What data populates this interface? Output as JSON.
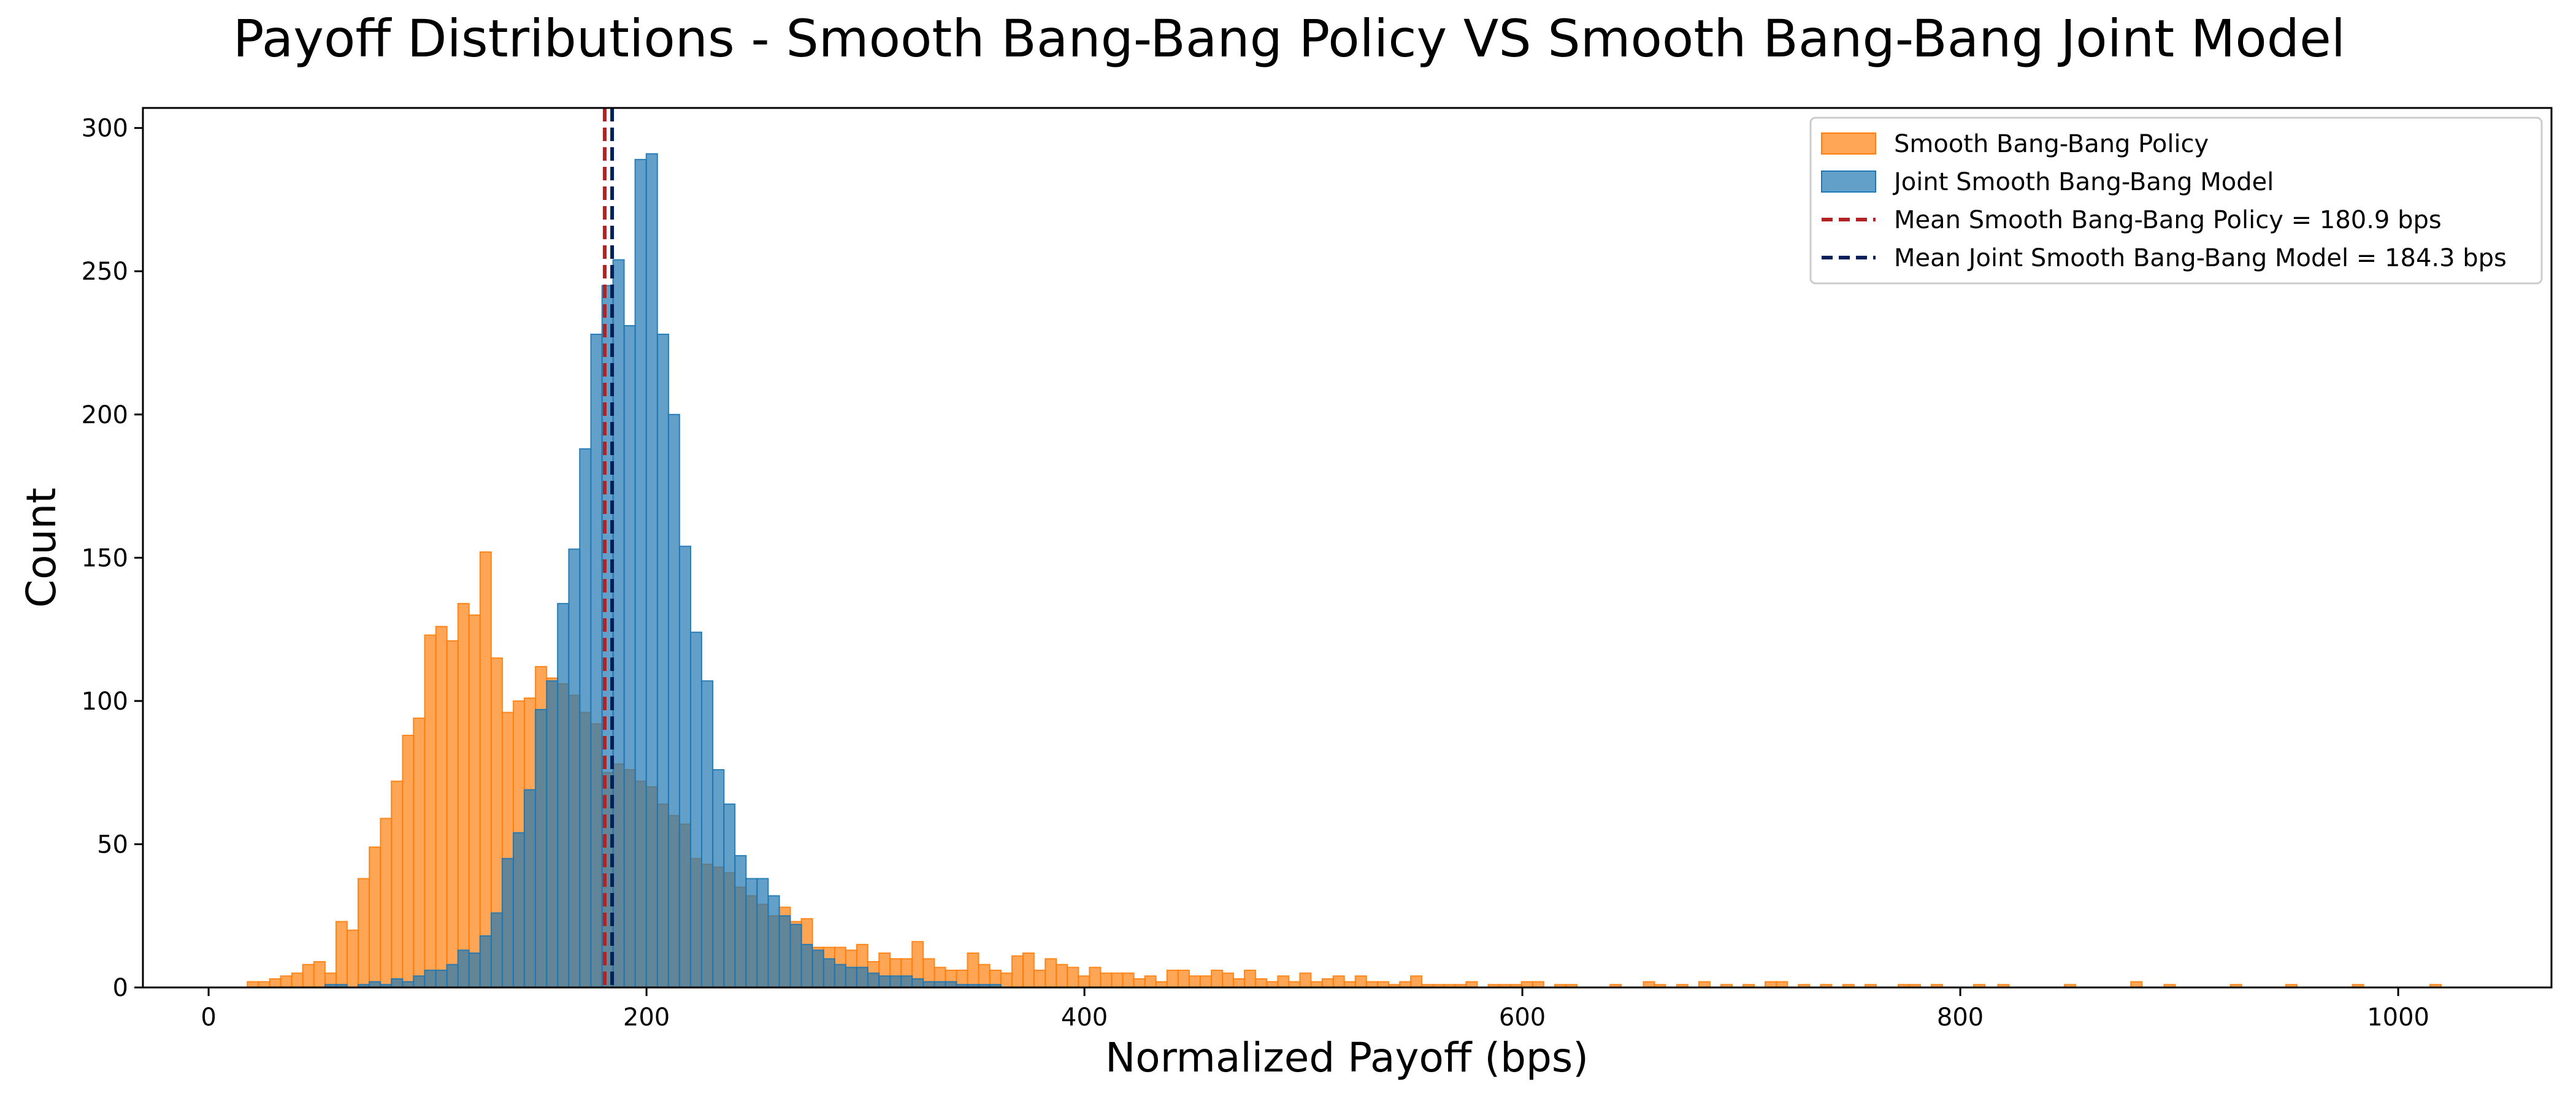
{
  "chart_data": {
    "type": "bar",
    "title": "Payoff Distributions - Smooth Bang-Bang Policy VS Smooth Bang-Bang Joint Model",
    "xlabel": "Normalized Payoff (bps)",
    "ylabel": "Count",
    "xlim": [
      -30,
      1070
    ],
    "ylim": [
      0,
      307
    ],
    "xticks": [
      0,
      200,
      400,
      600,
      800,
      1000
    ],
    "yticks": [
      0,
      50,
      100,
      150,
      200,
      250,
      300
    ],
    "grid": false,
    "legend_position": "top-right",
    "bin_width": 5.06,
    "overlay": true,
    "series": [
      {
        "name": "Smooth Bang-Bang Policy",
        "color": "#ff7f0e",
        "alpha": 0.7,
        "bins": [
          [
            17.7,
            2
          ],
          [
            22.8,
            2
          ],
          [
            27.9,
            3
          ],
          [
            32.9,
            4
          ],
          [
            38.0,
            5
          ],
          [
            43.0,
            8
          ],
          [
            48.1,
            9
          ],
          [
            53.2,
            5
          ],
          [
            58.2,
            23
          ],
          [
            63.3,
            20
          ],
          [
            68.3,
            38
          ],
          [
            73.4,
            49
          ],
          [
            78.5,
            59
          ],
          [
            83.5,
            72
          ],
          [
            88.6,
            88
          ],
          [
            93.6,
            94
          ],
          [
            98.7,
            123
          ],
          [
            103.8,
            126
          ],
          [
            108.8,
            121
          ],
          [
            113.9,
            134
          ],
          [
            118.9,
            130
          ],
          [
            124.0,
            152
          ],
          [
            129.1,
            115
          ],
          [
            134.1,
            96
          ],
          [
            139.2,
            100
          ],
          [
            144.2,
            101
          ],
          [
            149.3,
            112
          ],
          [
            154.4,
            108
          ],
          [
            159.4,
            106
          ],
          [
            164.5,
            102
          ],
          [
            169.5,
            96
          ],
          [
            174.6,
            92
          ],
          [
            179.7,
            75
          ],
          [
            184.7,
            78
          ],
          [
            189.8,
            76
          ],
          [
            194.8,
            72
          ],
          [
            199.9,
            70
          ],
          [
            205.0,
            64
          ],
          [
            210.0,
            60
          ],
          [
            215.1,
            57
          ],
          [
            220.1,
            45
          ],
          [
            225.2,
            43
          ],
          [
            230.3,
            42
          ],
          [
            235.3,
            40
          ],
          [
            240.4,
            35
          ],
          [
            245.4,
            32
          ],
          [
            250.5,
            29
          ],
          [
            255.6,
            25
          ],
          [
            260.6,
            28
          ],
          [
            265.7,
            23
          ],
          [
            270.7,
            24
          ],
          [
            275.8,
            14
          ],
          [
            280.9,
            14
          ],
          [
            285.9,
            14
          ],
          [
            291.0,
            13
          ],
          [
            296.0,
            15
          ],
          [
            301.1,
            9
          ],
          [
            306.2,
            12
          ],
          [
            311.2,
            10
          ],
          [
            316.3,
            10
          ],
          [
            321.3,
            16
          ],
          [
            326.4,
            10
          ],
          [
            331.5,
            7
          ],
          [
            336.5,
            6
          ],
          [
            341.6,
            6
          ],
          [
            346.6,
            12
          ],
          [
            351.7,
            8
          ],
          [
            356.8,
            6
          ],
          [
            361.8,
            5
          ],
          [
            366.9,
            11
          ],
          [
            371.9,
            12
          ],
          [
            377.0,
            6
          ],
          [
            382.1,
            10
          ],
          [
            387.1,
            8
          ],
          [
            392.2,
            7
          ],
          [
            397.2,
            4
          ],
          [
            402.3,
            7
          ],
          [
            407.4,
            5
          ],
          [
            412.4,
            5
          ],
          [
            417.5,
            5
          ],
          [
            422.5,
            3
          ],
          [
            427.6,
            4
          ],
          [
            432.7,
            2
          ],
          [
            437.7,
            6
          ],
          [
            442.8,
            6
          ],
          [
            447.8,
            4
          ],
          [
            452.9,
            4
          ],
          [
            458.0,
            6
          ],
          [
            463.0,
            5
          ],
          [
            468.1,
            3
          ],
          [
            473.1,
            6
          ],
          [
            478.2,
            3
          ],
          [
            483.3,
            2
          ],
          [
            488.3,
            4
          ],
          [
            493.4,
            2
          ],
          [
            498.4,
            5
          ],
          [
            503.5,
            2
          ],
          [
            508.6,
            3
          ],
          [
            513.6,
            4
          ],
          [
            518.7,
            2
          ],
          [
            523.7,
            4
          ],
          [
            528.8,
            2
          ],
          [
            533.9,
            2
          ],
          [
            538.9,
            1
          ],
          [
            544.0,
            2
          ],
          [
            549.0,
            4
          ],
          [
            554.1,
            1
          ],
          [
            559.2,
            1
          ],
          [
            564.2,
            1
          ],
          [
            569.3,
            1
          ],
          [
            574.3,
            2
          ],
          [
            584.4,
            1
          ],
          [
            589.5,
            1
          ],
          [
            594.6,
            1
          ],
          [
            599.6,
            2
          ],
          [
            604.7,
            2
          ],
          [
            614.8,
            1
          ],
          [
            619.9,
            1
          ],
          [
            640.1,
            1
          ],
          [
            655.3,
            2
          ],
          [
            660.3,
            1
          ],
          [
            670.5,
            1
          ],
          [
            680.6,
            2
          ],
          [
            690.7,
            1
          ],
          [
            700.8,
            1
          ],
          [
            710.9,
            2
          ],
          [
            716.0,
            2
          ],
          [
            726.1,
            1
          ],
          [
            736.2,
            1
          ],
          [
            746.4,
            1
          ],
          [
            756.5,
            1
          ],
          [
            771.7,
            1
          ],
          [
            776.7,
            1
          ],
          [
            786.8,
            1
          ],
          [
            806.1,
            1
          ],
          [
            817.2,
            1
          ],
          [
            847.6,
            1
          ],
          [
            877.9,
            2
          ],
          [
            893.1,
            1
          ],
          [
            923.4,
            1
          ],
          [
            948.7,
            1
          ],
          [
            979.1,
            1
          ],
          [
            1014.5,
            1
          ]
        ]
      },
      {
        "name": "Joint Smooth Bang-Bang Model",
        "color": "#1f77b4",
        "alpha": 0.7,
        "bins": [
          [
            53.2,
            1
          ],
          [
            58.2,
            1
          ],
          [
            68.3,
            1
          ],
          [
            73.4,
            2
          ],
          [
            78.5,
            1
          ],
          [
            83.5,
            3
          ],
          [
            88.6,
            2
          ],
          [
            93.6,
            4
          ],
          [
            98.7,
            6
          ],
          [
            103.8,
            6
          ],
          [
            108.8,
            8
          ],
          [
            113.9,
            13
          ],
          [
            118.9,
            12
          ],
          [
            124.0,
            18
          ],
          [
            129.1,
            26
          ],
          [
            134.1,
            45
          ],
          [
            139.2,
            54
          ],
          [
            144.2,
            69
          ],
          [
            149.3,
            97
          ],
          [
            154.4,
            107
          ],
          [
            159.4,
            134
          ],
          [
            164.5,
            153
          ],
          [
            169.5,
            188
          ],
          [
            174.6,
            228
          ],
          [
            179.7,
            245
          ],
          [
            184.7,
            254
          ],
          [
            189.8,
            231
          ],
          [
            194.8,
            289
          ],
          [
            199.9,
            291
          ],
          [
            205.0,
            228
          ],
          [
            210.0,
            200
          ],
          [
            215.1,
            154
          ],
          [
            220.1,
            124
          ],
          [
            225.2,
            107
          ],
          [
            230.3,
            76
          ],
          [
            235.3,
            64
          ],
          [
            240.4,
            46
          ],
          [
            245.4,
            38
          ],
          [
            250.5,
            38
          ],
          [
            255.6,
            32
          ],
          [
            260.6,
            25
          ],
          [
            265.7,
            22
          ],
          [
            270.7,
            15
          ],
          [
            275.8,
            13
          ],
          [
            280.9,
            10
          ],
          [
            285.9,
            8
          ],
          [
            291.0,
            7
          ],
          [
            296.0,
            7
          ],
          [
            301.1,
            5
          ],
          [
            306.2,
            4
          ],
          [
            311.2,
            4
          ],
          [
            316.3,
            4
          ],
          [
            321.3,
            3
          ],
          [
            326.4,
            2
          ],
          [
            331.5,
            2
          ],
          [
            336.5,
            2
          ],
          [
            341.6,
            1
          ],
          [
            346.6,
            1
          ],
          [
            351.7,
            1
          ],
          [
            356.8,
            1
          ]
        ]
      }
    ],
    "mean_lines": [
      {
        "label": "Mean Smooth Bang-Bang Policy = 180.9 bps",
        "x": 180.9,
        "color": "#b22222",
        "style": "dashed"
      },
      {
        "label": "Mean Joint Smooth Bang-Bang Model = 184.3 bps",
        "x": 184.3,
        "color": "#00205b",
        "style": "dashed"
      }
    ]
  }
}
